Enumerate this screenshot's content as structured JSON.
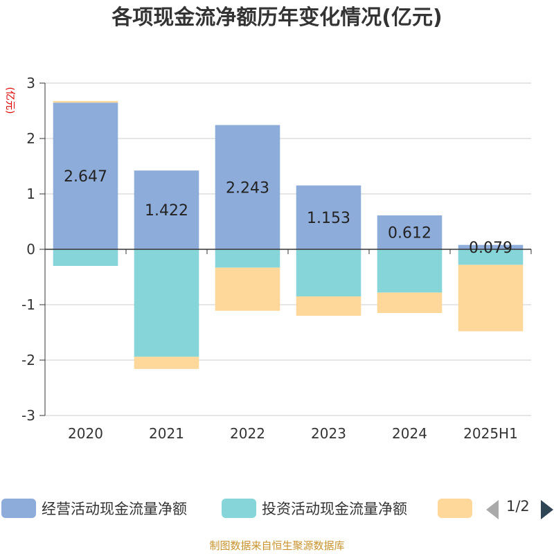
{
  "chart_data": {
    "type": "bar",
    "stacked": true,
    "title": "各项现金流净额历年变化情况(亿元)",
    "ylabel": "(亿元)",
    "categories": [
      "2020",
      "2021",
      "2022",
      "2023",
      "2024",
      "2025H1"
    ],
    "ylim": [
      -3,
      3
    ],
    "yticks": [
      3,
      2,
      1,
      0,
      -1,
      -2,
      -3
    ],
    "grid": true,
    "legend_position": "bottom",
    "series": [
      {
        "name": "经营活动现金流量净额",
        "color": "#8eacd9",
        "values": [
          2.647,
          1.422,
          2.243,
          1.153,
          0.612,
          0.079
        ],
        "labels": [
          "2.647",
          "1.422",
          "2.243",
          "1.153",
          "0.612",
          "0.079"
        ]
      },
      {
        "name": "投资活动现金流量净额",
        "color": "#86d5d8",
        "values": [
          -0.3,
          -1.94,
          -0.33,
          -0.85,
          -0.78,
          -0.28
        ]
      },
      {
        "name": "",
        "color": "#fdd89a",
        "values": [
          0.03,
          -0.22,
          -0.78,
          -0.35,
          -0.37,
          -1.2
        ]
      }
    ]
  },
  "legend": {
    "page_text": "1/2"
  },
  "footer": "制图数据来自恒生聚源数据库"
}
